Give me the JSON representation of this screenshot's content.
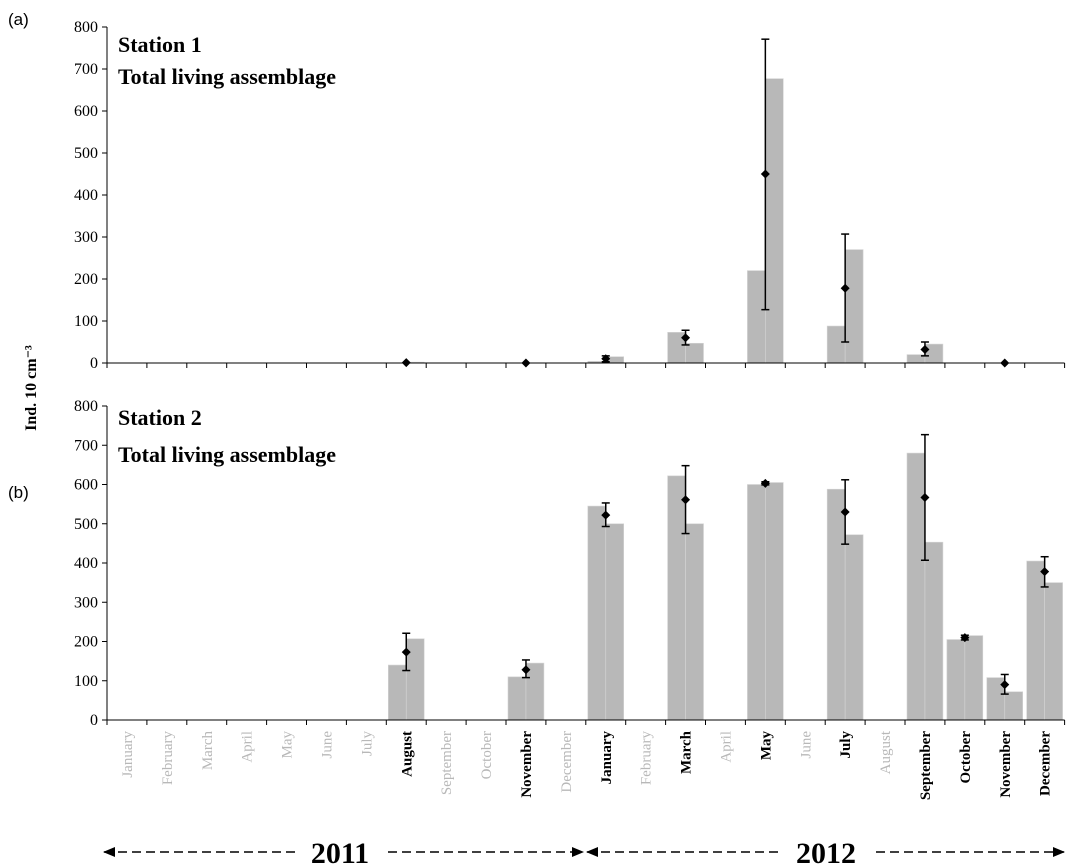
{
  "chart_data": {
    "type": "bar",
    "ylabel": "Ind. 10 cm⁻³",
    "ylim": [
      0,
      800
    ],
    "yticks": [
      0,
      100,
      200,
      300,
      400,
      500,
      600,
      700,
      800
    ],
    "months": [
      {
        "label": "January",
        "active": false
      },
      {
        "label": "February",
        "active": false
      },
      {
        "label": "March",
        "active": false
      },
      {
        "label": "April",
        "active": false
      },
      {
        "label": "May",
        "active": false
      },
      {
        "label": "June",
        "active": false
      },
      {
        "label": "July",
        "active": false
      },
      {
        "label": "August",
        "active": true
      },
      {
        "label": "September",
        "active": false
      },
      {
        "label": "October",
        "active": false
      },
      {
        "label": "November",
        "active": true
      },
      {
        "label": "December",
        "active": false
      },
      {
        "label": "January",
        "active": true
      },
      {
        "label": "February",
        "active": false
      },
      {
        "label": "March",
        "active": true
      },
      {
        "label": "April",
        "active": false
      },
      {
        "label": "May",
        "active": true
      },
      {
        "label": "June",
        "active": false
      },
      {
        "label": "July",
        "active": true
      },
      {
        "label": "August",
        "active": false
      },
      {
        "label": "September",
        "active": true
      },
      {
        "label": "October",
        "active": true
      },
      {
        "label": "November",
        "active": true
      },
      {
        "label": "December",
        "active": true
      }
    ],
    "years": [
      "2011",
      "2012"
    ],
    "panels": [
      {
        "tag": "(a)",
        "title_line1": "Station 1",
        "title_line2": "Total living assemblage",
        "data": [
          {
            "month_index": 7,
            "bars": [
              0,
              2
            ],
            "mean": 1,
            "err_low": 1,
            "err_high": 1
          },
          {
            "month_index": 10,
            "bars": [
              0,
              0
            ],
            "mean": 0,
            "err_low": 0,
            "err_high": 0
          },
          {
            "month_index": 12,
            "bars": [
              4,
              15
            ],
            "mean": 10,
            "err_low": 3,
            "err_high": 17
          },
          {
            "month_index": 14,
            "bars": [
              73,
              47
            ],
            "mean": 60,
            "err_low": 43,
            "err_high": 78
          },
          {
            "month_index": 16,
            "bars": [
              220,
              677
            ],
            "mean": 450,
            "err_low": 127,
            "err_high": 771
          },
          {
            "month_index": 18,
            "bars": [
              88,
              270
            ],
            "mean": 178,
            "err_low": 50,
            "err_high": 307
          },
          {
            "month_index": 20,
            "bars": [
              20,
              45
            ],
            "mean": 32,
            "err_low": 17,
            "err_high": 50
          },
          {
            "month_index": 22,
            "bars": [
              0,
              0
            ],
            "mean": 0,
            "err_low": 0,
            "err_high": 0
          }
        ]
      },
      {
        "tag": "(b)",
        "title_line1": "Station 2",
        "title_line2": "Total living assemblage",
        "data": [
          {
            "month_index": 7,
            "bars": [
              140,
              207
            ],
            "mean": 173,
            "err_low": 126,
            "err_high": 221
          },
          {
            "month_index": 10,
            "bars": [
              110,
              145
            ],
            "mean": 128,
            "err_low": 108,
            "err_high": 153
          },
          {
            "month_index": 12,
            "bars": [
              545,
              500
            ],
            "mean": 522,
            "err_low": 493,
            "err_high": 553
          },
          {
            "month_index": 14,
            "bars": [
              622,
              500
            ],
            "mean": 561,
            "err_low": 475,
            "err_high": 648
          },
          {
            "month_index": 16,
            "bars": [
              600,
              605
            ],
            "mean": 603,
            "err_low": 599,
            "err_high": 607
          },
          {
            "month_index": 18,
            "bars": [
              588,
              472
            ],
            "mean": 530,
            "err_low": 448,
            "err_high": 612
          },
          {
            "month_index": 20,
            "bars": [
              680,
              453
            ],
            "mean": 567,
            "err_low": 407,
            "err_high": 727
          },
          {
            "month_index": 21,
            "bars": [
              205,
              215
            ],
            "mean": 210,
            "err_low": 204,
            "err_high": 216
          },
          {
            "month_index": 22,
            "bars": [
              108,
              72
            ],
            "mean": 90,
            "err_low": 66,
            "err_high": 116
          },
          {
            "month_index": 23,
            "bars": [
              405,
              350
            ],
            "mean": 378,
            "err_low": 339,
            "err_high": 416
          }
        ]
      }
    ],
    "bar_color": "#b8b8b8",
    "marker_color": "#000000"
  }
}
